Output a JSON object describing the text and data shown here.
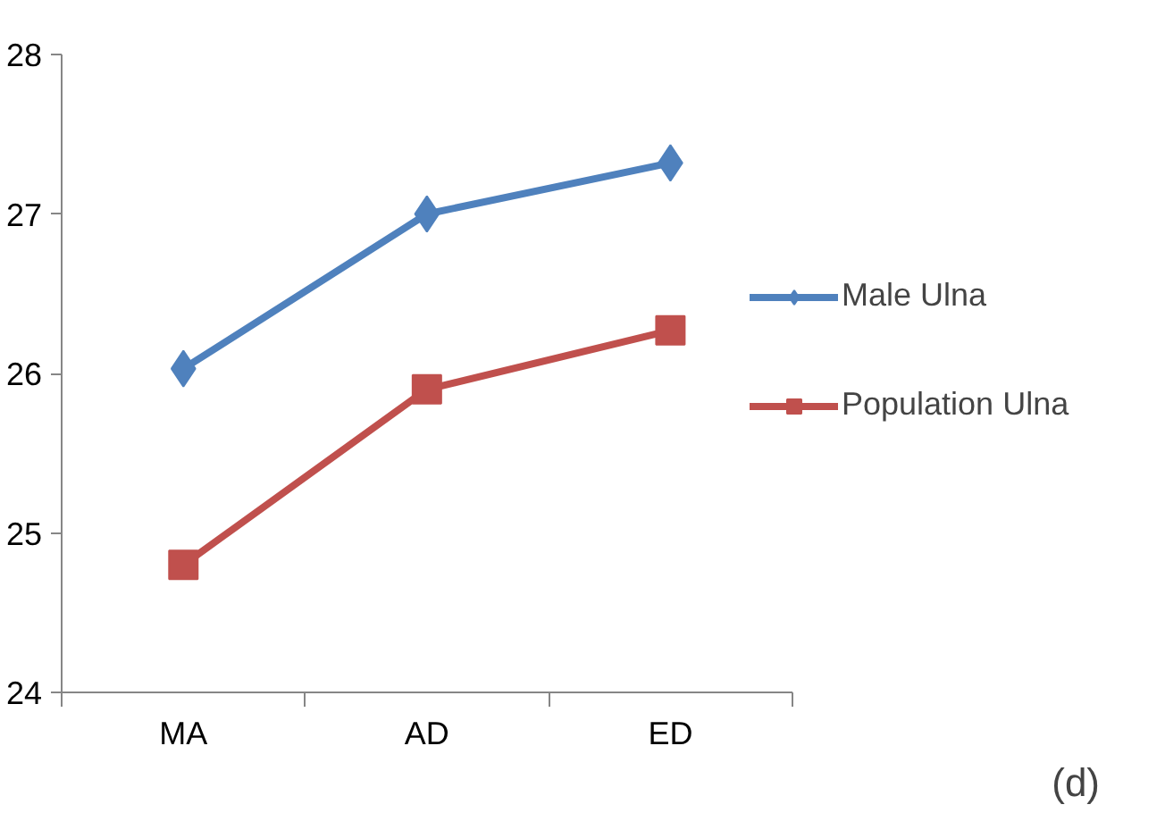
{
  "chart_data": {
    "type": "line",
    "categories": [
      "MA",
      "AD",
      "ED"
    ],
    "series": [
      {
        "name": "Male Ulna",
        "color": "#4f81bd",
        "values": [
          26.03,
          27.0,
          27.32
        ],
        "marker": "diamond"
      },
      {
        "name": "Population Ulna",
        "color": "#c0504d",
        "values": [
          24.8,
          25.9,
          26.27
        ],
        "marker": "square"
      }
    ],
    "ylim": [
      24,
      28
    ],
    "yticks": [
      24,
      25,
      26,
      27,
      28
    ],
    "grid": false,
    "legend": "right",
    "line_style": "solid",
    "annotations": [
      "(d)"
    ]
  }
}
